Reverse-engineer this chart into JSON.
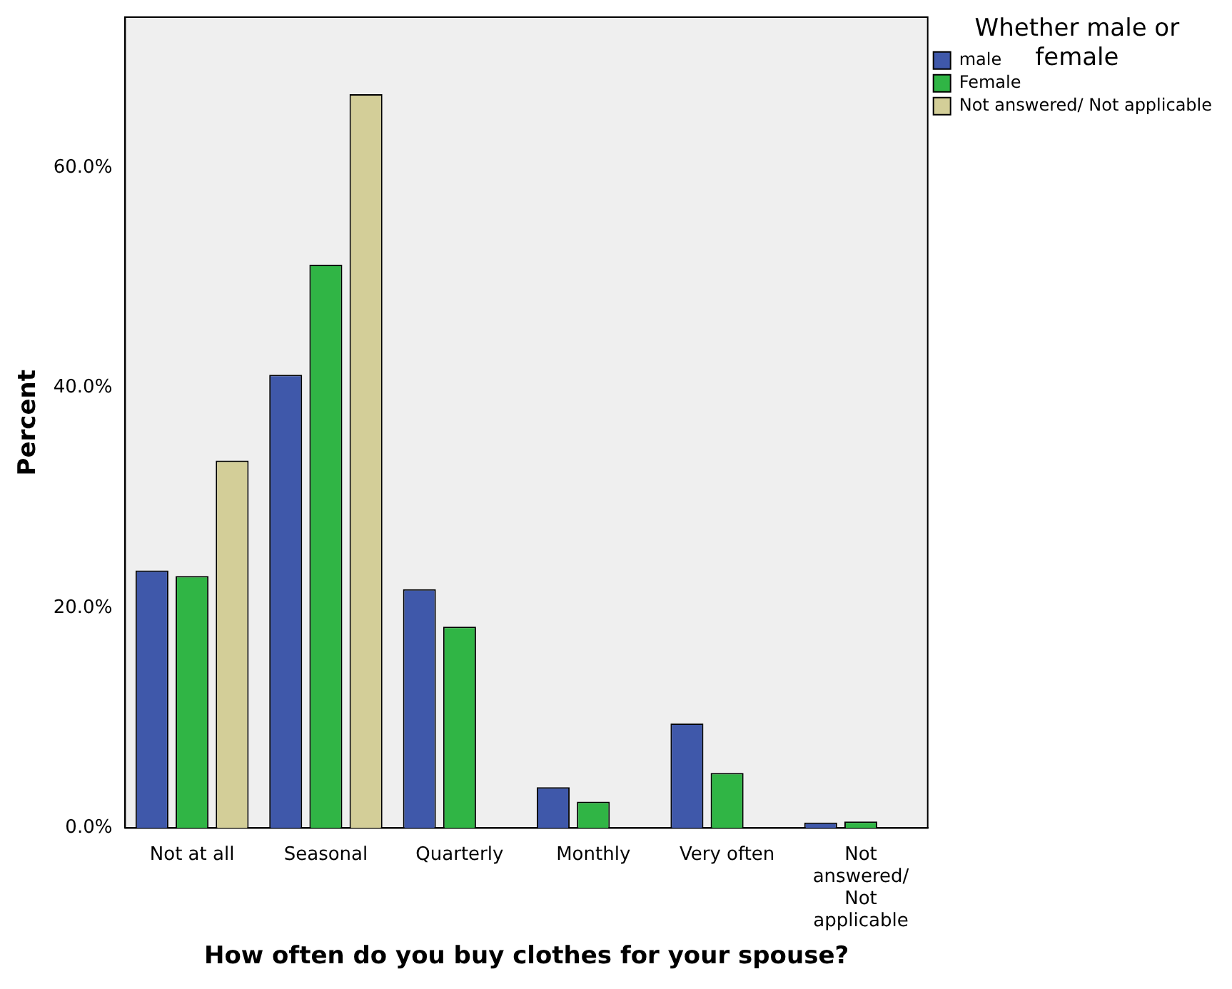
{
  "chart_data": {
    "type": "bar",
    "xlabel": "How often do you buy clothes for your spouse?",
    "ylabel": "Percent",
    "legend_title": "Whether male or female",
    "categories": [
      "Not at all",
      "Seasonal",
      "Quarterly",
      "Monthly",
      "Very often",
      "Not answered/ Not applicable"
    ],
    "series": [
      {
        "name": "male",
        "color": "#3f58aa",
        "values": [
          23.4,
          41.2,
          21.7,
          3.7,
          9.5,
          0.5
        ]
      },
      {
        "name": "Female",
        "color": "#30b545",
        "values": [
          22.9,
          51.2,
          18.3,
          2.4,
          5.0,
          0.6
        ]
      },
      {
        "name": "Not answered/ Not applicable",
        "color": "#d3ce98",
        "values": [
          33.4,
          66.7,
          0,
          0,
          0,
          0
        ]
      }
    ],
    "ylim": [
      0,
      73.7
    ],
    "yticks": [
      {
        "value": 0,
        "label": "0.0%"
      },
      {
        "value": 20,
        "label": "20.0%"
      },
      {
        "value": 40,
        "label": "40.0%"
      },
      {
        "value": 60,
        "label": "60.0%"
      }
    ],
    "grid": false,
    "legend": "right"
  }
}
